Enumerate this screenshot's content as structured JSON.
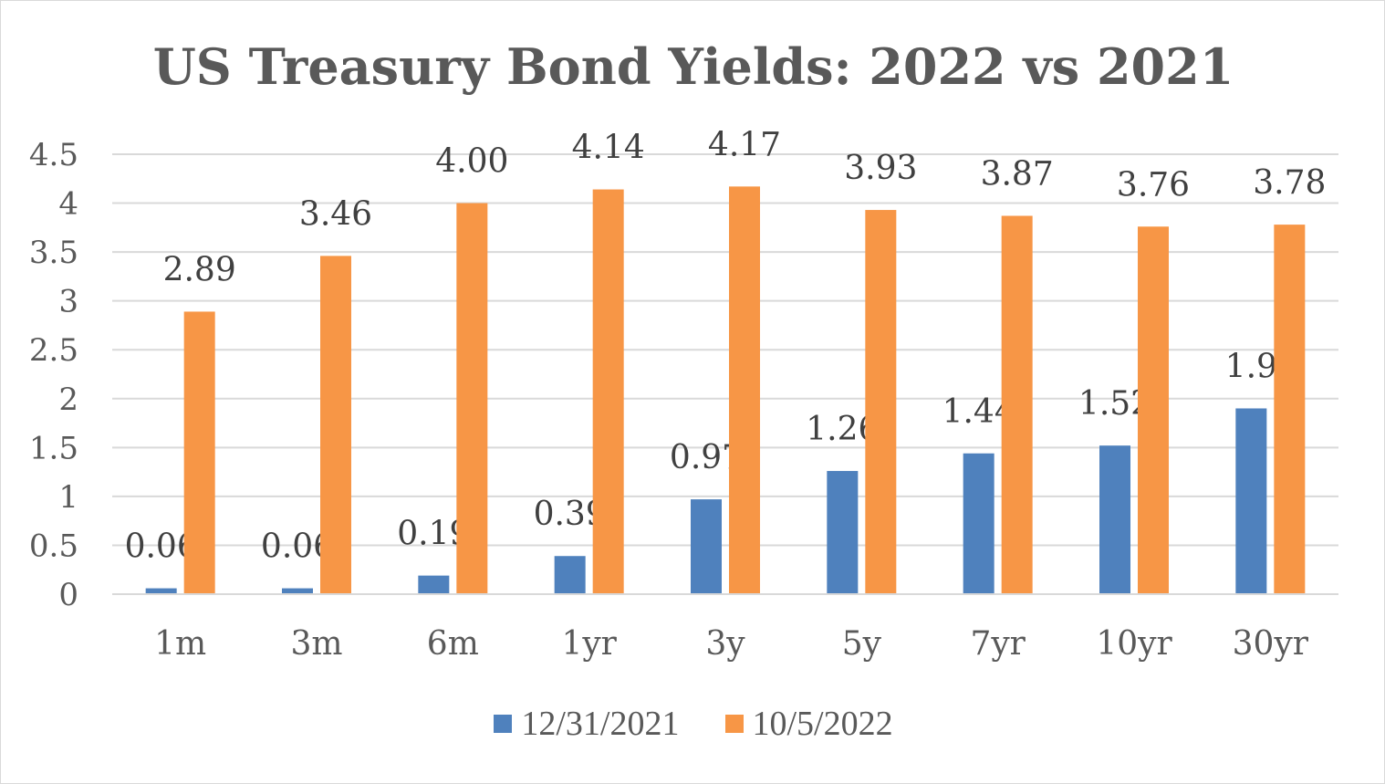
{
  "chart_data": {
    "type": "bar",
    "title": "US Treasury Bond Yields: 2022 vs 2021",
    "xlabel": "",
    "ylabel": "",
    "ylim": [
      0,
      4.5
    ],
    "yticks": [
      "0",
      "0.5",
      "1",
      "1.5",
      "2",
      "2.5",
      "3",
      "3.5",
      "4",
      "4.5"
    ],
    "grid": true,
    "legend": "bottom",
    "categories": [
      "1m",
      "3m",
      "6m",
      "1yr",
      "3y",
      "5y",
      "7yr",
      "10yr",
      "30yr"
    ],
    "series": [
      {
        "name": "12/31/2021",
        "color": "#4f81bd",
        "values": [
          0.06,
          0.06,
          0.19,
          0.39,
          0.97,
          1.26,
          1.44,
          1.52,
          1.9
        ],
        "labels": [
          "0.06",
          "0.06",
          "0.19",
          "0.39",
          "0.97",
          "1.26",
          "1.44",
          "1.52",
          "1.9"
        ]
      },
      {
        "name": "10/5/2022",
        "color": "#f79646",
        "values": [
          2.89,
          3.46,
          4.0,
          4.14,
          4.17,
          3.93,
          3.87,
          3.76,
          3.78
        ],
        "labels": [
          "2.89",
          "3.46",
          "4.00",
          "4.14",
          "4.17",
          "3.93",
          "3.87",
          "3.76",
          "3.78"
        ]
      }
    ]
  }
}
